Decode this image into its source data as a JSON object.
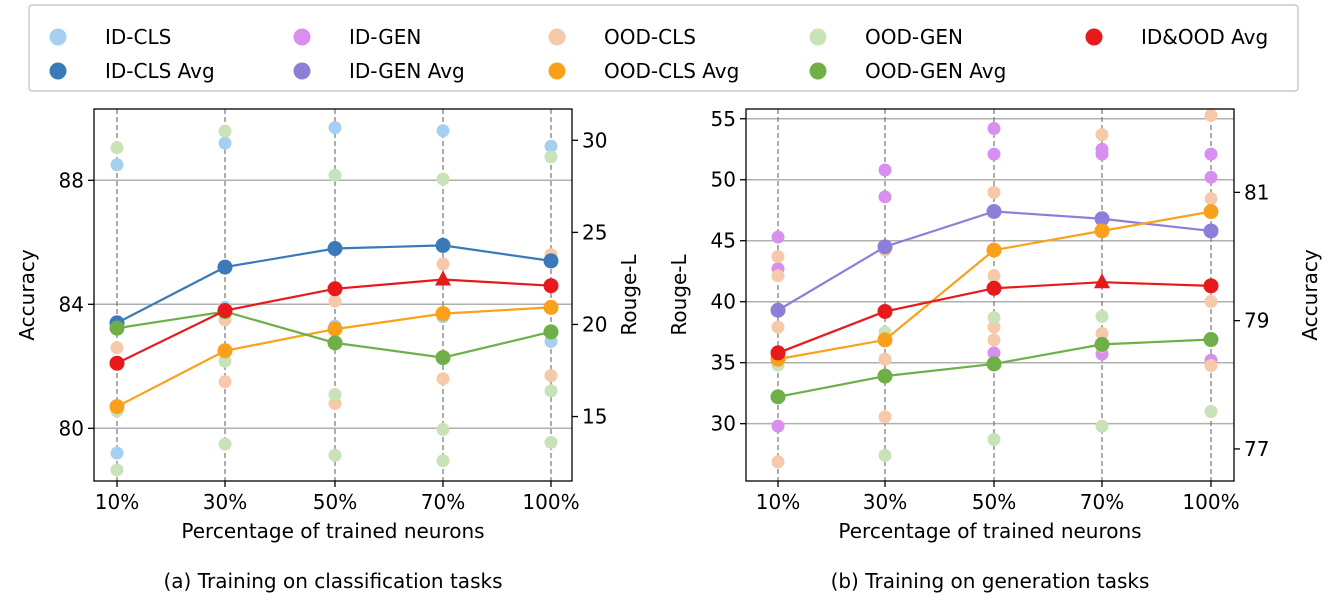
{
  "legend": [
    {
      "label": "ID-CLS",
      "color": "#a7cff0"
    },
    {
      "label": "ID-CLS Avg",
      "color": "#3a7ab8"
    },
    {
      "label": "ID-GEN",
      "color": "#d98ff0"
    },
    {
      "label": "ID-GEN Avg",
      "color": "#8c7fd8"
    },
    {
      "label": "OOD-CLS",
      "color": "#f5c9a9"
    },
    {
      "label": "OOD-CLS Avg",
      "color": "#f9a11b"
    },
    {
      "label": "OOD-GEN",
      "color": "#c9e3b8"
    },
    {
      "label": "OOD-GEN Avg",
      "color": "#6eaf48"
    },
    {
      "label": "ID&OOD Avg",
      "color": "#e8191b"
    }
  ],
  "chart_data": [
    {
      "type": "line",
      "caption": "(a) Training on classification tasks",
      "xlabel": "Percentage of trained neurons",
      "ylabel_left": "Accuracy",
      "ylabel_right": "Rouge-L",
      "categories": [
        "10%",
        "30%",
        "50%",
        "70%",
        "100%"
      ],
      "left_axis": {
        "ylim": [
          78.3,
          90.3
        ],
        "ticks": [
          "80",
          "84",
          "88"
        ],
        "tick_values": [
          80,
          84,
          88
        ]
      },
      "right_axis": {
        "ylim": [
          11.5,
          31.7
        ],
        "ticks": [
          "15",
          "20",
          "25",
          "30"
        ],
        "tick_values": [
          15,
          20,
          25,
          30
        ]
      },
      "scatter": [
        {
          "name": "ID-CLS",
          "axis": "left",
          "color": "#a7cff0",
          "points": [
            [
              0,
              88.5
            ],
            [
              0,
              79.2
            ],
            [
              1,
              89.2
            ],
            [
              1,
              83.9
            ],
            [
              2,
              89.7
            ],
            [
              2,
              83.3
            ],
            [
              3,
              89.6
            ],
            [
              3,
              83.6
            ],
            [
              4,
              89.1
            ],
            [
              4,
              82.8
            ]
          ]
        },
        {
          "name": "OOD-CLS",
          "axis": "left",
          "color": "#f5c9a9",
          "points": [
            [
              0,
              82.6
            ],
            [
              0,
              80.7
            ],
            [
              1,
              83.5
            ],
            [
              1,
              81.5
            ],
            [
              2,
              84.1
            ],
            [
              2,
              80.8
            ],
            [
              3,
              85.3
            ],
            [
              3,
              81.6
            ],
            [
              4,
              85.6
            ],
            [
              4,
              81.7
            ]
          ]
        },
        {
          "name": "OOD-GEN",
          "axis": "right",
          "color": "#c9e3b8",
          "points": [
            [
              0,
              29.6
            ],
            [
              0,
              15.3
            ],
            [
              0,
              12.1
            ],
            [
              1,
              30.5
            ],
            [
              1,
              18.0
            ],
            [
              1,
              13.5
            ],
            [
              2,
              28.1
            ],
            [
              2,
              16.2
            ],
            [
              2,
              12.9
            ],
            [
              3,
              27.9
            ],
            [
              3,
              14.3
            ],
            [
              3,
              12.6
            ],
            [
              4,
              29.1
            ],
            [
              4,
              16.4
            ],
            [
              4,
              13.6
            ]
          ]
        }
      ],
      "series": [
        {
          "name": "ID-CLS Avg",
          "axis": "left",
          "color": "#3a7ab8",
          "values": [
            83.4,
            85.2,
            85.8,
            85.9,
            85.4
          ]
        },
        {
          "name": "OOD-CLS Avg",
          "axis": "left",
          "color": "#f9a11b",
          "values": [
            80.7,
            82.5,
            83.2,
            83.7,
            83.9
          ]
        },
        {
          "name": "OOD-GEN Avg",
          "axis": "right",
          "color": "#6eaf48",
          "values": [
            19.8,
            20.7,
            19.0,
            18.2,
            19.6
          ]
        },
        {
          "name": "ID&OOD Avg",
          "axis": "left",
          "color": "#e8191b",
          "values": [
            82.1,
            83.8,
            84.5,
            84.8,
            84.6
          ],
          "triangle_index": 3
        }
      ]
    },
    {
      "type": "line",
      "caption": "(b) Training on generation tasks",
      "xlabel": "Percentage of trained neurons",
      "ylabel_left": "Rouge-L",
      "ylabel_right": "Accuracy",
      "categories": [
        "10%",
        "30%",
        "50%",
        "70%",
        "100%"
      ],
      "left_axis": {
        "ylim": [
          25.3,
          55.8
        ],
        "ticks": [
          "30",
          "35",
          "40",
          "45",
          "50",
          "55"
        ],
        "tick_values": [
          30,
          35,
          40,
          45,
          50,
          55
        ]
      },
      "right_axis": {
        "ylim": [
          76.5,
          82.3
        ],
        "ticks": [
          "77",
          "79",
          "81"
        ],
        "tick_values": [
          77,
          79,
          81
        ]
      },
      "scatter": [
        {
          "name": "ID-GEN",
          "axis": "left",
          "color": "#d98ff0",
          "points": [
            [
              0,
              45.3
            ],
            [
              0,
              42.7
            ],
            [
              0,
              29.8
            ],
            [
              1,
              50.8
            ],
            [
              1,
              48.6
            ],
            [
              1,
              36.9
            ],
            [
              2,
              54.2
            ],
            [
              2,
              52.1
            ],
            [
              2,
              35.8
            ],
            [
              3,
              52.5
            ],
            [
              3,
              52.1
            ],
            [
              3,
              35.7
            ],
            [
              4,
              52.1
            ],
            [
              4,
              50.2
            ],
            [
              4,
              35.2
            ]
          ]
        },
        {
          "name": "OOD-CLS",
          "axis": "right",
          "color": "#f5c9a9",
          "points": [
            [
              0,
              80.0
            ],
            [
              0,
              79.7
            ],
            [
              0,
              78.9
            ],
            [
              0,
              76.8
            ],
            [
              1,
              80.1
            ],
            [
              1,
              78.4
            ],
            [
              1,
              77.5
            ],
            [
              2,
              81.0
            ],
            [
              2,
              79.7
            ],
            [
              2,
              78.9
            ],
            [
              2,
              78.7
            ],
            [
              3,
              81.9
            ],
            [
              3,
              80.6
            ],
            [
              3,
              78.8
            ],
            [
              3,
              78.6
            ],
            [
              4,
              82.2
            ],
            [
              4,
              80.9
            ],
            [
              4,
              79.3
            ],
            [
              4,
              78.3
            ]
          ]
        },
        {
          "name": "OOD-GEN",
          "axis": "left",
          "color": "#c9e3b8",
          "points": [
            [
              0,
              34.8
            ],
            [
              1,
              37.5
            ],
            [
              1,
              27.4
            ],
            [
              2,
              38.7
            ],
            [
              2,
              28.7
            ],
            [
              3,
              38.8
            ],
            [
              3,
              29.8
            ],
            [
              4,
              41.2
            ],
            [
              4,
              31.0
            ]
          ]
        }
      ],
      "series": [
        {
          "name": "ID-GEN Avg",
          "axis": "left",
          "color": "#8c7fd8",
          "values": [
            39.3,
            44.5,
            47.4,
            46.8,
            45.8
          ]
        },
        {
          "name": "OOD-CLS Avg",
          "axis": "right",
          "color": "#f9a11b",
          "values": [
            78.4,
            78.7,
            80.1,
            80.4,
            80.7
          ]
        },
        {
          "name": "OOD-GEN Avg",
          "axis": "left",
          "color": "#6eaf48",
          "values": [
            32.2,
            33.9,
            34.9,
            36.5,
            36.9
          ]
        },
        {
          "name": "ID&OOD Avg",
          "axis": "left",
          "color": "#e8191b",
          "values": [
            35.8,
            39.2,
            41.1,
            41.6,
            41.3
          ],
          "triangle_index": 3
        }
      ]
    }
  ]
}
